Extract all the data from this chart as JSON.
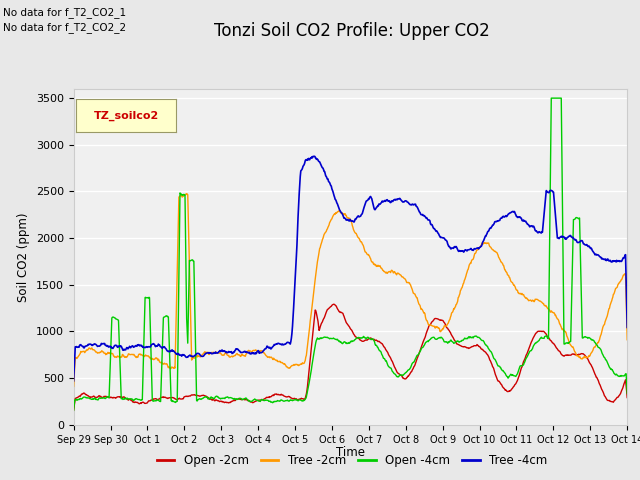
{
  "title": "Tonzi Soil CO2 Profile: Upper CO2",
  "ylabel": "Soil CO2 (ppm)",
  "xlabel": "Time",
  "no_data_text_1": "No data for f_T2_CO2_1",
  "no_data_text_2": "No data for f_T2_CO2_2",
  "legend_label": "TZ_soilco2",
  "ylim": [
    0,
    3600
  ],
  "yticks": [
    0,
    500,
    1000,
    1500,
    2000,
    2500,
    3000,
    3500
  ],
  "xtick_labels": [
    "Sep 29",
    "Sep 30",
    "Oct 1",
    "Oct 2",
    "Oct 3",
    "Oct 4",
    "Oct 5",
    "Oct 6",
    "Oct 7",
    "Oct 8",
    "Oct 9",
    "Oct 10",
    "Oct 11",
    "Oct 12",
    "Oct 13",
    "Oct 14"
  ],
  "line_colors": {
    "open2": "#cc0000",
    "tree2": "#ff9900",
    "open4": "#00cc00",
    "tree4": "#0000cc"
  },
  "line_labels": [
    "Open -2cm",
    "Tree -2cm",
    "Open -4cm",
    "Tree -4cm"
  ],
  "bg_color": "#e8e8e8",
  "plot_bg_color": "#f0f0f0",
  "title_fontsize": 12,
  "legend_box_color": "#ffffcc",
  "legend_text_color": "#cc0000",
  "grid_color": "#ffffff",
  "spine_color": "#cccccc"
}
